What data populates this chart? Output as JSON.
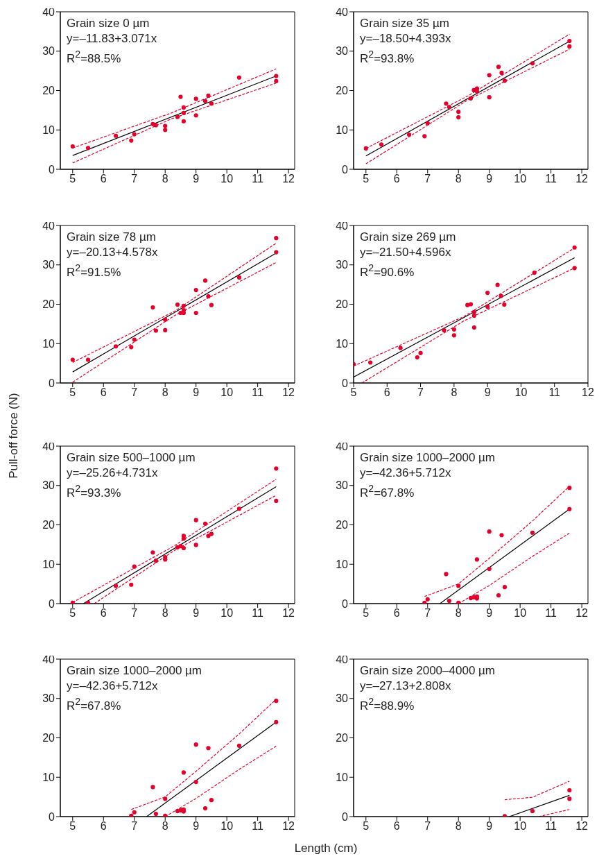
{
  "chart_data": [
    {
      "type": "scatter",
      "annotations": [
        "Grain size 0 µm",
        "y=–11.83+3.071x",
        "R$^{2}$=88.5%"
      ],
      "xlim": [
        4.6,
        12.2
      ],
      "xticks": [
        5,
        6,
        7,
        8,
        9,
        10,
        11,
        12
      ],
      "ylim": [
        0,
        40
      ],
      "yticks": [
        0,
        10,
        20,
        30,
        40
      ],
      "series": [
        {
          "color": "#e4002b",
          "marker": "circle",
          "x": [
            5,
            5.5,
            6.4,
            6.9,
            7,
            7.6,
            7.7,
            8,
            8,
            8.4,
            8.5,
            8.6,
            8.6,
            8.6,
            9,
            9,
            9.3,
            9.4,
            9.5,
            10.4,
            11.6,
            11.6
          ],
          "values": [
            5.8,
            5.4,
            8.5,
            7.3,
            8.9,
            11.5,
            11.2,
            11,
            10,
            13.3,
            18.4,
            15.7,
            14.3,
            12.2,
            17.9,
            13.7,
            17.3,
            18.7,
            16.7,
            23.3,
            23.7,
            22.4
          ]
        },
        {
          "type": "line",
          "color": "#000000",
          "line_style": "solid",
          "x": [
            5,
            11.6
          ],
          "values": [
            3.5,
            23.7
          ]
        },
        {
          "type": "line",
          "color": "#e4002b",
          "line_style": "dashed",
          "x": [
            5,
            8.2,
            11.6
          ],
          "values": [
            1.6,
            12.8,
            21.9
          ]
        },
        {
          "type": "line",
          "color": "#e4002b",
          "line_style": "dashed",
          "x": [
            5,
            8.2,
            11.6
          ],
          "values": [
            5.4,
            14.3,
            25.5
          ]
        }
      ]
    },
    {
      "type": "scatter",
      "annotations": [
        "Grain size 35 µm",
        "y=–18.50+4.393x",
        "R$^{2}$=93.8%"
      ],
      "xlim": [
        4.6,
        12.2
      ],
      "xticks": [
        5,
        6,
        7,
        8,
        9,
        10,
        11,
        12
      ],
      "ylim": [
        0,
        40
      ],
      "yticks": [
        0,
        10,
        20,
        30,
        40
      ],
      "series": [
        {
          "color": "#e4002b",
          "marker": "circle",
          "x": [
            5,
            5.5,
            6.4,
            6.9,
            7,
            7.6,
            7.7,
            8,
            8,
            8.4,
            8.5,
            8.6,
            8.6,
            9,
            9,
            9.3,
            9.4,
            9.5,
            10.4,
            11.6,
            11.6
          ],
          "values": [
            5.3,
            6.3,
            8.8,
            8.4,
            11.7,
            16.7,
            15.8,
            14.6,
            13.2,
            18,
            20.1,
            20.5,
            19.8,
            23.9,
            18.3,
            26,
            24.5,
            22.5,
            26.9,
            32.6,
            31.2
          ]
        },
        {
          "type": "line",
          "color": "#000000",
          "line_style": "solid",
          "x": [
            5,
            11.6
          ],
          "values": [
            3.4,
            32.5
          ]
        },
        {
          "type": "line",
          "color": "#e4002b",
          "line_style": "dashed",
          "x": [
            5,
            8.3,
            11.6
          ],
          "values": [
            1.4,
            17.6,
            30.5
          ]
        },
        {
          "type": "line",
          "color": "#e4002b",
          "line_style": "dashed",
          "x": [
            5,
            8.3,
            11.6
          ],
          "values": [
            5.3,
            18.6,
            34.3
          ]
        }
      ]
    },
    {
      "type": "scatter",
      "annotations": [
        "Grain size 78 µm",
        "y=–20.13+4.578x",
        "R$^{2}$=91.5%"
      ],
      "xlim": [
        4.6,
        12.2
      ],
      "xticks": [
        5,
        6,
        7,
        8,
        9,
        10,
        11,
        12
      ],
      "ylim": [
        0,
        40
      ],
      "yticks": [
        0,
        10,
        20,
        30,
        40
      ],
      "series": [
        {
          "color": "#e4002b",
          "marker": "circle",
          "x": [
            5,
            5.5,
            6.4,
            6.9,
            7,
            7.6,
            7.7,
            8,
            8,
            8.4,
            8.5,
            8.6,
            8.6,
            8.6,
            9,
            9,
            9.3,
            9.4,
            9.5,
            10.4,
            11.6,
            11.6
          ],
          "values": [
            5.9,
            5.9,
            9.3,
            9.1,
            11,
            19.2,
            13.3,
            16.1,
            13.4,
            19.9,
            17.8,
            19.6,
            17.8,
            18.5,
            23.6,
            17.8,
            26,
            22,
            19.8,
            26.8,
            36.8,
            33.2
          ]
        },
        {
          "type": "line",
          "color": "#000000",
          "line_style": "solid",
          "x": [
            5,
            11.6
          ],
          "values": [
            2.8,
            33
          ]
        },
        {
          "type": "line",
          "color": "#e4002b",
          "line_style": "dashed",
          "x": [
            5,
            8.3,
            11.6
          ],
          "values": [
            0.2,
            17.1,
            30.6
          ]
        },
        {
          "type": "line",
          "color": "#e4002b",
          "line_style": "dashed",
          "x": [
            5,
            8.3,
            11.6
          ],
          "values": [
            5.2,
            18.2,
            35.5
          ]
        }
      ]
    },
    {
      "type": "scatter",
      "annotations": [
        "Grain size 269 µm",
        "y=–21.50+4.596x",
        "R$^{2}$=90.6%"
      ],
      "xlim": [
        5,
        12
      ],
      "xticks": [
        5,
        6,
        7,
        8,
        9,
        10,
        11,
        12
      ],
      "ylim": [
        0,
        40
      ],
      "yticks": [
        0,
        10,
        20,
        30,
        40
      ],
      "series": [
        {
          "color": "#e4002b",
          "marker": "circle",
          "x": [
            5,
            5.5,
            6.4,
            6.9,
            7,
            7.7,
            8,
            8,
            8.4,
            8.5,
            8.6,
            8.6,
            8.6,
            9,
            9,
            9.3,
            9.4,
            9.5,
            10.4,
            11.6,
            11.6
          ],
          "values": [
            4.8,
            5.2,
            8.9,
            6.5,
            7.6,
            13.4,
            13.6,
            12.1,
            19.8,
            20,
            18,
            17.1,
            14.1,
            22.9,
            19.4,
            24.9,
            22.1,
            19.9,
            28,
            34.4,
            29.2
          ]
        },
        {
          "type": "line",
          "color": "#000000",
          "line_style": "solid",
          "x": [
            5,
            11.6
          ],
          "values": [
            1.5,
            31.8
          ]
        },
        {
          "type": "line",
          "color": "#e4002b",
          "line_style": "dashed",
          "x": [
            5.25,
            8.3,
            11.6
          ],
          "values": [
            0,
            15.8,
            29.2
          ]
        },
        {
          "type": "line",
          "color": "#e4002b",
          "line_style": "dashed",
          "x": [
            5,
            8.3,
            11.6
          ],
          "values": [
            4.3,
            16.9,
            34.3
          ]
        }
      ]
    },
    {
      "type": "scatter",
      "ylabel": "Pull-off force (N)",
      "annotations": [
        "Grain size 500–1000 µm",
        "y=–25.26+4.731x",
        "R$^{2}$=93.3%"
      ],
      "xlim": [
        4.6,
        12.2
      ],
      "xticks": [
        5,
        6,
        7,
        8,
        9,
        10,
        11,
        12
      ],
      "ylim": [
        0,
        40
      ],
      "yticks": [
        0,
        10,
        20,
        30,
        40
      ],
      "series": [
        {
          "color": "#e4002b",
          "marker": "circle",
          "x": [
            5,
            5.5,
            6.4,
            6.9,
            7,
            7.6,
            7.7,
            8,
            8,
            8.4,
            8.5,
            8.6,
            8.6,
            8.6,
            9,
            9,
            9.3,
            9.4,
            9.5,
            10.4,
            11.6,
            11.6
          ],
          "values": [
            0.2,
            0.2,
            4.5,
            4.8,
            9.4,
            13,
            10.9,
            11.8,
            11.2,
            14.3,
            14.6,
            17.2,
            16.5,
            14.1,
            21.2,
            14.9,
            20.3,
            17.2,
            17.7,
            24.1,
            34.3,
            26.1
          ]
        },
        {
          "type": "line",
          "color": "#000000",
          "line_style": "solid",
          "x": [
            5.35,
            11.6
          ],
          "values": [
            0,
            29.7
          ]
        },
        {
          "type": "line",
          "color": "#e4002b",
          "line_style": "dashed",
          "x": [
            5.7,
            8.3,
            11.6
          ],
          "values": [
            0,
            13.5,
            27.5
          ]
        },
        {
          "type": "line",
          "color": "#e4002b",
          "line_style": "dashed",
          "x": [
            5,
            8.3,
            11.6
          ],
          "values": [
            0.3,
            14.7,
            31.6
          ]
        }
      ]
    },
    {
      "type": "scatter",
      "annotations": [
        "Grain size 1000–2000 µm",
        "y=–42.36+5.712x",
        "R$^{2}$=67.8%"
      ],
      "xlim": [
        4.6,
        12.2
      ],
      "xticks": [
        5,
        6,
        7,
        8,
        9,
        10,
        11,
        12
      ],
      "ylim": [
        0,
        40
      ],
      "yticks": [
        0,
        10,
        20,
        30,
        40
      ],
      "series": [
        {
          "color": "#e4002b",
          "marker": "circle",
          "x": [
            6.9,
            7,
            7.6,
            7.7,
            8,
            8,
            8.4,
            8.5,
            8.6,
            8.6,
            8.6,
            9,
            9,
            9.3,
            9.4,
            9.5,
            10.4,
            11.6,
            11.6
          ],
          "values": [
            0.2,
            1.1,
            7.5,
            0.7,
            4.5,
            0.2,
            1.4,
            1.6,
            1.8,
            1.3,
            11.2,
            18.3,
            8.8,
            2.1,
            17.4,
            4.2,
            18,
            29.4,
            24
          ]
        },
        {
          "type": "line",
          "color": "#000000",
          "line_style": "solid",
          "x": [
            7.4,
            11.6
          ],
          "values": [
            0,
            24
          ]
        },
        {
          "type": "line",
          "color": "#e4002b",
          "line_style": "dashed",
          "x": [
            8,
            9,
            10.4,
            11.6
          ],
          "values": [
            0,
            4.6,
            12,
            17.9
          ]
        },
        {
          "type": "line",
          "color": "#e4002b",
          "line_style": "dashed",
          "x": [
            6.9,
            8,
            9,
            10.4,
            11.6
          ],
          "values": [
            1.8,
            5,
            11.5,
            21,
            29.8
          ]
        }
      ]
    },
    {
      "type": "scatter",
      "xlabel": "Length (cm)",
      "annotations": [
        "Grain size 1000–2000 µm",
        "y=–42.36+5.712x",
        "R$^{2}$=67.8%"
      ],
      "xlim": [
        4.6,
        12.2
      ],
      "xticks": [
        5,
        6,
        7,
        8,
        9,
        10,
        11,
        12
      ],
      "ylim": [
        0,
        40
      ],
      "yticks": [
        0,
        10,
        20,
        30,
        40
      ],
      "series": [
        {
          "color": "#e4002b",
          "marker": "circle",
          "x": [
            6.9,
            7,
            7.6,
            7.7,
            8,
            8,
            8.4,
            8.5,
            8.6,
            8.6,
            8.6,
            9,
            9,
            9.3,
            9.4,
            9.5,
            10.4,
            11.6,
            11.6
          ],
          "values": [
            0.2,
            1.1,
            7.5,
            0.7,
            4.5,
            0.2,
            1.4,
            1.6,
            1.8,
            1.3,
            11.2,
            18.3,
            8.8,
            2.1,
            17.4,
            4.2,
            18,
            29.4,
            24
          ]
        },
        {
          "type": "line",
          "color": "#000000",
          "line_style": "solid",
          "x": [
            7.4,
            11.6
          ],
          "values": [
            0,
            24
          ]
        },
        {
          "type": "line",
          "color": "#e4002b",
          "line_style": "dashed",
          "x": [
            8,
            9,
            10.4,
            11.6
          ],
          "values": [
            0,
            4.6,
            12,
            17.9
          ]
        },
        {
          "type": "line",
          "color": "#e4002b",
          "line_style": "dashed",
          "x": [
            6.9,
            8,
            9,
            10.4,
            11.6
          ],
          "values": [
            1.8,
            5,
            11.5,
            21,
            29.8
          ]
        }
      ]
    },
    {
      "type": "scatter",
      "annotations": [
        "Grain size 2000–4000 µm",
        "y=–27.13+2.808x",
        "R$^{2}$=88.9%"
      ],
      "xlim": [
        4.6,
        12.2
      ],
      "xticks": [
        5,
        6,
        7,
        8,
        9,
        10,
        11,
        12
      ],
      "ylim": [
        0,
        40
      ],
      "yticks": [
        0,
        10,
        20,
        30,
        40
      ],
      "series": [
        {
          "color": "#e4002b",
          "marker": "circle",
          "x": [
            9.5,
            10.4,
            11.6,
            11.6
          ],
          "values": [
            0.1,
            1.4,
            6.7,
            4.5
          ]
        },
        {
          "type": "line",
          "color": "#000000",
          "line_style": "solid",
          "x": [
            9.65,
            11.6
          ],
          "values": [
            0,
            5.4
          ]
        },
        {
          "type": "line",
          "color": "#e4002b",
          "line_style": "dashed",
          "x": [
            10.6,
            11.6
          ],
          "values": [
            0,
            1.8
          ]
        },
        {
          "type": "line",
          "color": "#e4002b",
          "line_style": "dashed",
          "x": [
            9.5,
            10.4,
            11.6
          ],
          "values": [
            4.3,
            4.9,
            9
          ]
        }
      ]
    }
  ]
}
